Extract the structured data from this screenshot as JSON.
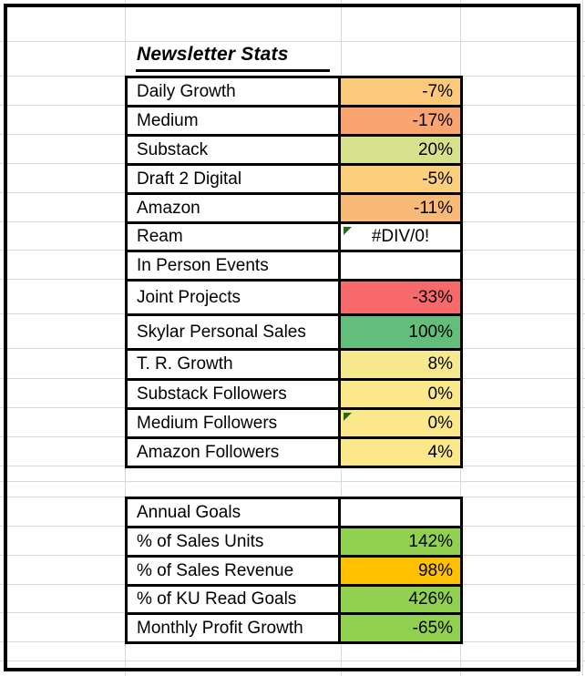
{
  "title": "Newsletter Stats",
  "stats_table": {
    "rows": [
      {
        "label": "Daily Growth",
        "value": "-7%",
        "bg": "#FBC979"
      },
      {
        "label": "Medium",
        "value": "-17%",
        "bg": "#F9A471"
      },
      {
        "label": "Substack",
        "value": "20%",
        "bg": "#D7E18B"
      },
      {
        "label": "Draft 2 Digital",
        "value": "-5%",
        "bg": "#FCCF7D"
      },
      {
        "label": "Amazon",
        "value": "-11%",
        "bg": "#FABA77"
      },
      {
        "label": "Ream",
        "value": "#DIV/0!",
        "bg": "#FFFFFF",
        "error_marker": true,
        "align": "center"
      },
      {
        "label": "In Person Events",
        "value": "",
        "bg": "#FFFFFF"
      },
      {
        "label": "Joint Projects",
        "value": "-33%",
        "bg": "#F8696B"
      },
      {
        "label": "Skylar Personal Sales",
        "value": "100%",
        "bg": "#63BE7B"
      },
      {
        "label": "T. R. Growth",
        "value": "8%",
        "bg": "#F6E88C"
      },
      {
        "label": "Substack Followers",
        "value": "0%",
        "bg": "#FBE88A"
      },
      {
        "label": "Medium Followers",
        "value": "0%",
        "bg": "#FBE88A",
        "error_marker": true
      },
      {
        "label": "Amazon Followers",
        "value": "4%",
        "bg": "#FBE88A"
      }
    ]
  },
  "goals_table": {
    "rows": [
      {
        "label": "Annual Goals",
        "value": "",
        "bg": "#FFFFFF"
      },
      {
        "label": "% of Sales Units",
        "value": "142%",
        "bg": "#92D050"
      },
      {
        "label": "% of Sales Revenue",
        "value": "98%",
        "bg": "#FFC000"
      },
      {
        "label": "% of KU Read Goals",
        "value": "426%",
        "bg": "#92D050"
      },
      {
        "label": "Monthly Profit Growth",
        "value": "-65%",
        "bg": "#92D050"
      }
    ]
  },
  "colors": {
    "gridline": "#D9D9D9",
    "frame_border": "#000000",
    "cell_border": "#000000",
    "error_indicator": "#1B6E1B"
  }
}
